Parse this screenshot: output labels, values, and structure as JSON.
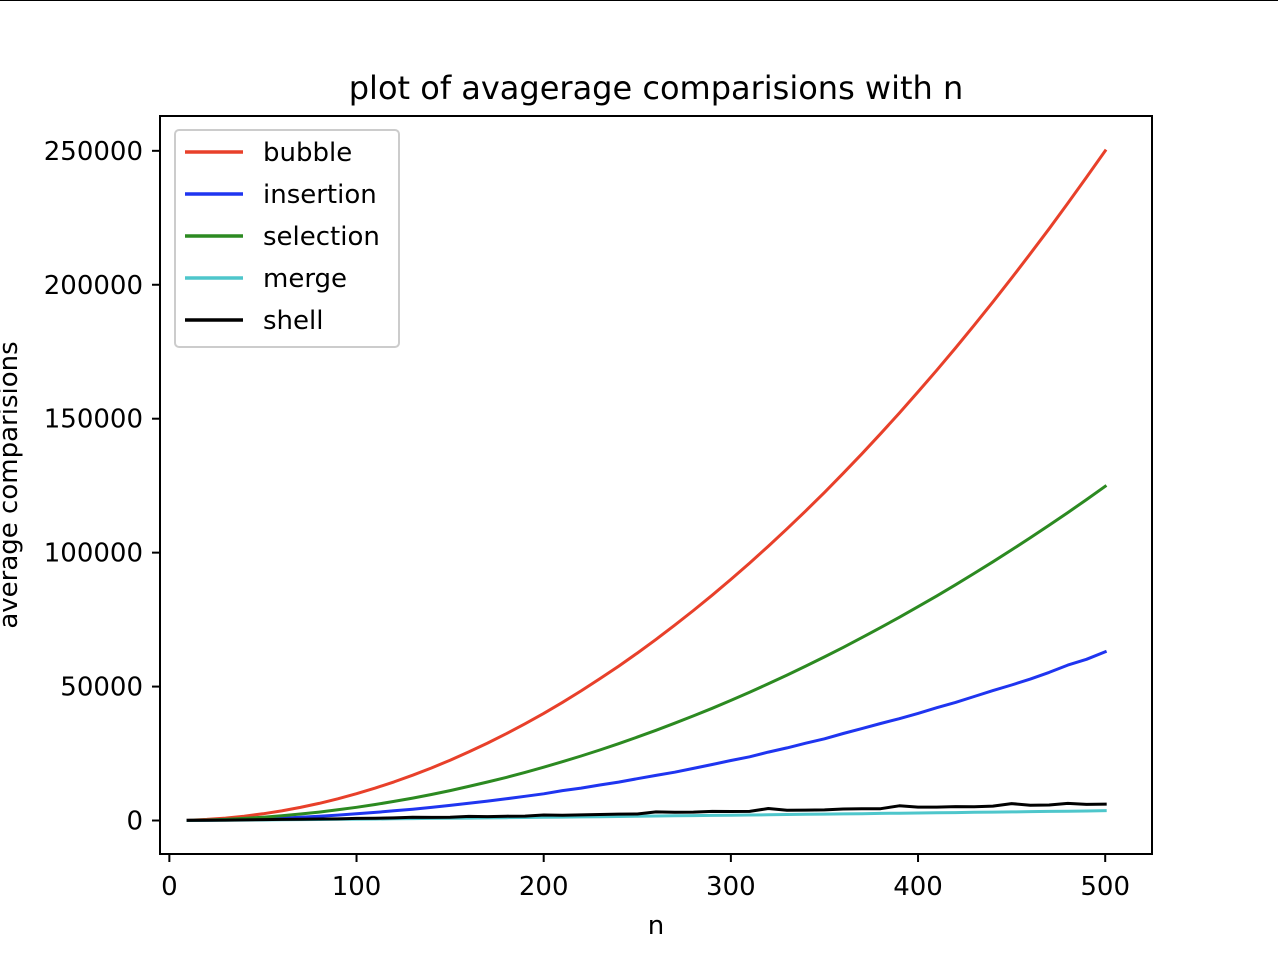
{
  "chart_data": {
    "type": "line",
    "title": "plot of avagerage comparisions with n",
    "xlabel": "n",
    "ylabel": "average comparisions",
    "xlim": [
      -5,
      525
    ],
    "ylim": [
      -12500,
      263000
    ],
    "xticks": [
      0,
      100,
      200,
      300,
      400,
      500
    ],
    "yticks": [
      0,
      50000,
      100000,
      150000,
      200000,
      250000
    ],
    "xtick_labels": [
      "0",
      "100",
      "200",
      "300",
      "400",
      "500"
    ],
    "ytick_labels": [
      "0",
      "50000",
      "100000",
      "150000",
      "200000",
      "250000"
    ],
    "grid": false,
    "legend_position": "upper-left",
    "x": [
      10,
      20,
      30,
      40,
      50,
      60,
      70,
      80,
      90,
      100,
      110,
      120,
      130,
      140,
      150,
      160,
      170,
      180,
      190,
      200,
      210,
      220,
      230,
      240,
      250,
      260,
      270,
      280,
      290,
      300,
      310,
      320,
      330,
      340,
      350,
      360,
      370,
      380,
      390,
      400,
      410,
      420,
      430,
      440,
      450,
      460,
      470,
      480,
      490,
      500
    ],
    "series": [
      {
        "name": "bubble",
        "color": "#e8402a",
        "values": [
          100,
          400,
          900,
          1600,
          2500,
          3600,
          4900,
          6400,
          8100,
          10000,
          12100,
          14400,
          16900,
          19600,
          22500,
          25600,
          28900,
          32400,
          36100,
          40000,
          44100,
          48400,
          52900,
          57600,
          62500,
          67600,
          72900,
          78400,
          84100,
          90000,
          96100,
          102400,
          108900,
          115600,
          122500,
          129600,
          136900,
          144400,
          152100,
          160000,
          168100,
          176400,
          184900,
          193600,
          202500,
          211600,
          220900,
          230400,
          240100,
          250000
        ]
      },
      {
        "name": "insertion",
        "color": "#1f35f0",
        "values": [
          28,
          103,
          228,
          403,
          630,
          905,
          1230,
          1610,
          2030,
          2500,
          3030,
          3610,
          4230,
          4910,
          5630,
          6420,
          7230,
          8120,
          9030,
          9980,
          11180,
          12100,
          13250,
          14350,
          15600,
          16850,
          18050,
          19450,
          20900,
          22400,
          23800,
          25550,
          27100,
          28850,
          30500,
          32500,
          34300,
          36200,
          38000,
          40000,
          42100,
          44100,
          46300,
          48500,
          50600,
          52800,
          55300,
          58000,
          60200,
          63000
        ]
      },
      {
        "name": "selection",
        "color": "#2c8a21",
        "values": [
          45,
          190,
          435,
          780,
          1225,
          1770,
          2415,
          3160,
          4005,
          4950,
          5995,
          7140,
          8385,
          9730,
          11175,
          12720,
          14365,
          16110,
          17955,
          19900,
          21945,
          24090,
          26335,
          28680,
          31125,
          33670,
          36315,
          39060,
          41905,
          44850,
          47895,
          51040,
          54285,
          57630,
          61075,
          64620,
          68265,
          72010,
          75855,
          79800,
          83845,
          87990,
          92235,
          96580,
          101025,
          105570,
          110215,
          114960,
          119805,
          124750
        ]
      },
      {
        "name": "merge",
        "color": "#4ec6cb",
        "values": [
          22,
          60,
          105,
          155,
          210,
          265,
          325,
          385,
          445,
          510,
          575,
          640,
          710,
          780,
          850,
          920,
          990,
          1065,
          1140,
          1210,
          1285,
          1360,
          1440,
          1515,
          1595,
          1670,
          1750,
          1830,
          1910,
          1990,
          2070,
          2150,
          2230,
          2310,
          2390,
          2475,
          2555,
          2640,
          2720,
          2805,
          2890,
          2970,
          3055,
          3140,
          3225,
          3310,
          3395,
          3480,
          3565,
          3650
        ]
      },
      {
        "name": "shell",
        "color": "#000000",
        "values": [
          40,
          90,
          160,
          230,
          330,
          400,
          470,
          560,
          620,
          780,
          850,
          960,
          1200,
          1150,
          1250,
          1550,
          1450,
          1600,
          1650,
          2050,
          2000,
          2100,
          2250,
          2400,
          2450,
          3200,
          3100,
          3150,
          3400,
          3350,
          3400,
          4500,
          3800,
          3900,
          3950,
          4300,
          4400,
          4400,
          5500,
          5000,
          5000,
          5200,
          5150,
          5400,
          6300,
          5700,
          5800,
          6400,
          6000,
          6100
        ]
      }
    ]
  }
}
